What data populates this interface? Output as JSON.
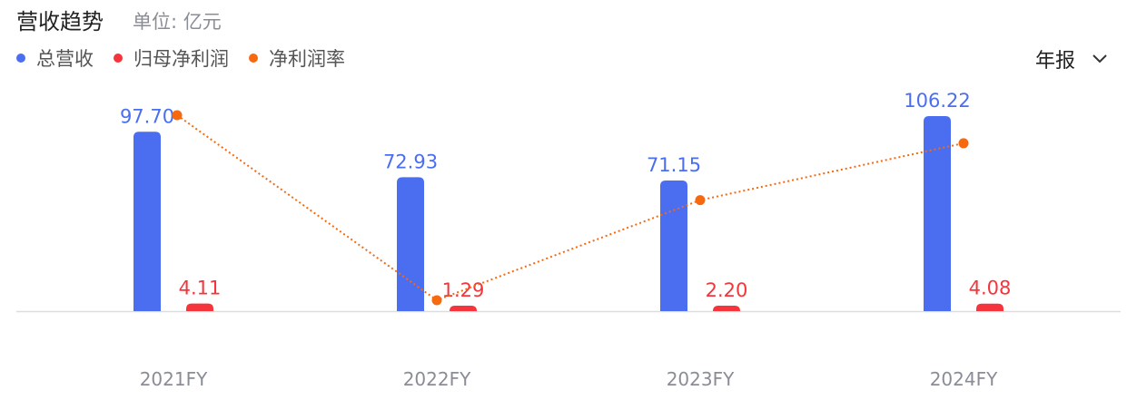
{
  "header": {
    "title": "营收趋势",
    "unit": "单位: 亿元"
  },
  "period_select": {
    "value": "年报",
    "icon": "chevron-down-icon"
  },
  "chart_data": {
    "type": "bar",
    "categories": [
      "2021FY",
      "2022FY",
      "2023FY",
      "2024FY"
    ],
    "series": [
      {
        "name": "总营收",
        "type": "bar",
        "color": "#4b6ef0",
        "values": [
          97.7,
          72.93,
          71.15,
          106.22
        ],
        "labels": [
          "97.70",
          "72.93",
          "71.15",
          "106.22"
        ]
      },
      {
        "name": "归母净利润",
        "type": "bar",
        "color": "#f5353b",
        "values": [
          4.11,
          1.29,
          2.2,
          4.08
        ],
        "labels": [
          "4.11",
          "1.29",
          "2.20",
          "4.08"
        ]
      },
      {
        "name": "净利润率",
        "type": "line",
        "style": "dotted",
        "color": "#f7690f",
        "values": [
          4.21,
          1.77,
          3.09,
          3.84
        ],
        "unit": "%"
      }
    ],
    "legend": "top-left",
    "grid": false
  }
}
